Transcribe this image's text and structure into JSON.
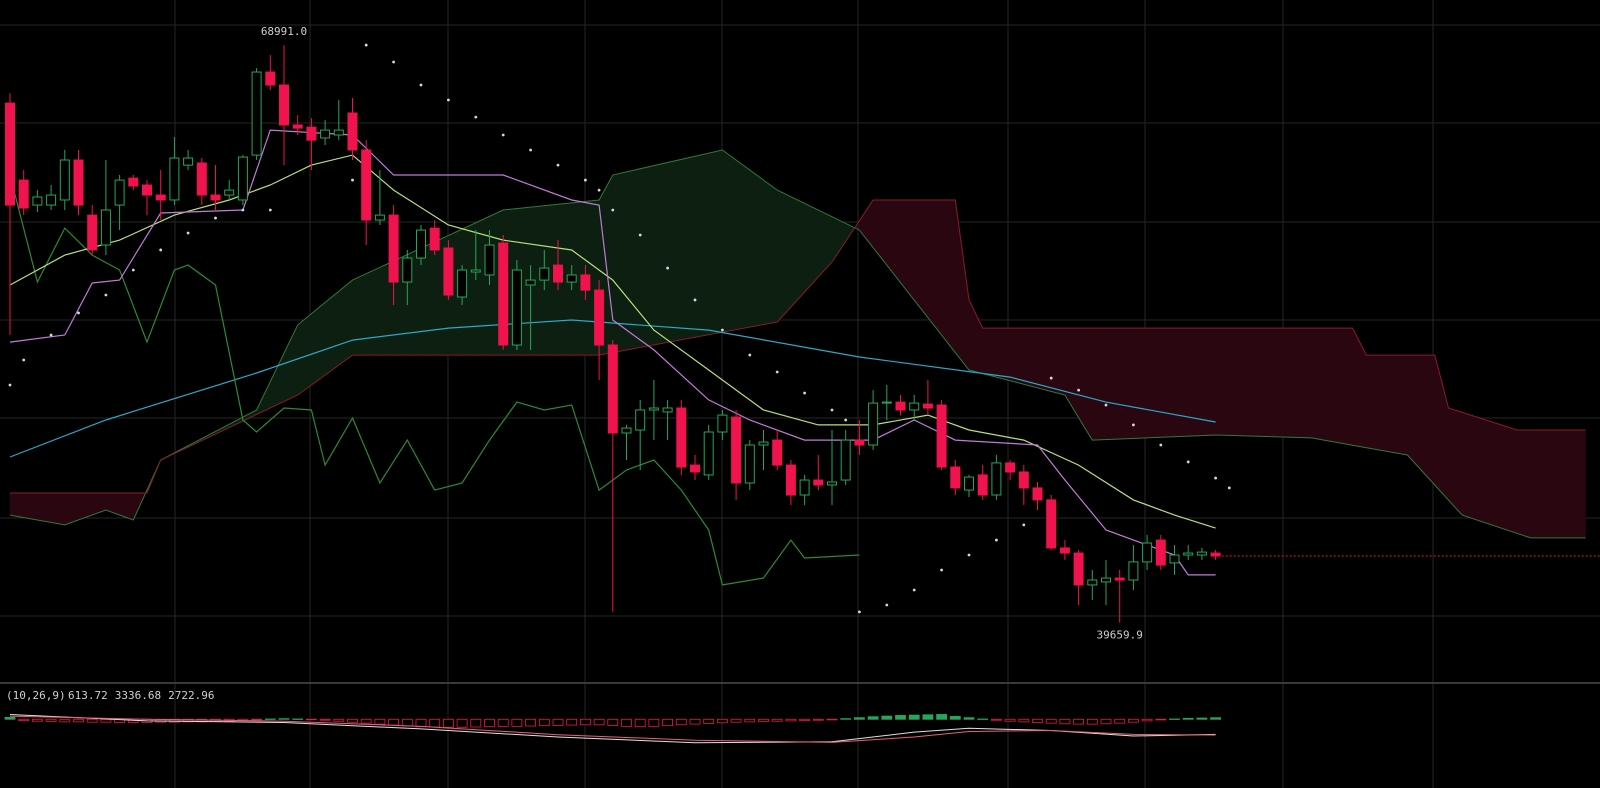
{
  "chart_data": {
    "type": "candlestick",
    "high_label": "68991.0",
    "low_label": "39659.9",
    "ylim": [
      36740,
      71290
    ],
    "categories": [
      null,
      null,
      null,
      null,
      null,
      null,
      null,
      null,
      null,
      null,
      null,
      null,
      null,
      null,
      null,
      null,
      null,
      null,
      null,
      null,
      null,
      null,
      null,
      null,
      null,
      null,
      null,
      null,
      null,
      null,
      null,
      null,
      null,
      null,
      null,
      null,
      null,
      null,
      null,
      null,
      null,
      null,
      null,
      null,
      null,
      null,
      null,
      null,
      null,
      null,
      null,
      null,
      null,
      null,
      null,
      null,
      null,
      null,
      null,
      null,
      null,
      null,
      null,
      null,
      null,
      null,
      null,
      null,
      null,
      null,
      null,
      null,
      null,
      null,
      null,
      null,
      null,
      null,
      null,
      null,
      null,
      null,
      null,
      null,
      null,
      null,
      null,
      null,
      null
    ],
    "up_color": "#26a65b",
    "down_color": "#f0134d",
    "open": [
      66050,
      62140,
      60870,
      60870,
      61130,
      63160,
      60360,
      58840,
      60870,
      62240,
      61890,
      61380,
      61130,
      62900,
      63010,
      61380,
      61380,
      61130,
      63410,
      67630,
      66970,
      64940,
      64830,
      64280,
      64430,
      65550,
      63670,
      60110,
      60360,
      56960,
      58180,
      59700,
      58690,
      56200,
      57470,
      57320,
      58940,
      53760,
      56810,
      57060,
      57820,
      56960,
      57320,
      56550,
      53760,
      49290,
      49440,
      50460,
      50360,
      50560,
      47660,
      47160,
      49340,
      50100,
      46750,
      48680,
      48930,
      47660,
      46140,
      46900,
      46650,
      46900,
      48930,
      48680,
      50810,
      50860,
      50460,
      50760,
      50710,
      47560,
      46390,
      47160,
      46140,
      47770,
      47310,
      46500,
      45890,
      43450,
      43190,
      41570,
      41720,
      41920,
      41820,
      42740,
      43850,
      42690,
      43090,
      43090,
      43190
    ],
    "high": [
      66560,
      62650,
      61630,
      61890,
      63670,
      63670,
      60870,
      63160,
      62400,
      62400,
      62140,
      62650,
      64330,
      63670,
      63260,
      62900,
      62140,
      63410,
      67830,
      68490,
      68991.0,
      65440,
      65290,
      65190,
      66210,
      66310,
      64170,
      62650,
      60870,
      58590,
      59860,
      60110,
      59090,
      57820,
      59600,
      59600,
      59350,
      58080,
      57820,
      58590,
      59090,
      57820,
      57820,
      57060,
      54010,
      49700,
      50970,
      51980,
      50970,
      50970,
      48170,
      49700,
      50460,
      50460,
      48930,
      49440,
      49440,
      47920,
      47160,
      48170,
      49440,
      49440,
      49950,
      51470,
      51730,
      51220,
      51220,
      51980,
      50970,
      47920,
      47160,
      47660,
      48170,
      47920,
      47660,
      46800,
      46140,
      43850,
      43350,
      42330,
      42840,
      42330,
      43600,
      44110,
      44110,
      43600,
      43600,
      43450,
      43350
    ],
    "low": [
      54270,
      60360,
      60520,
      60620,
      60620,
      60360,
      58330,
      58330,
      59600,
      61630,
      60360,
      60110,
      60870,
      62650,
      60870,
      60620,
      61130,
      60870,
      63160,
      66710,
      62900,
      64430,
      62650,
      63920,
      64170,
      63160,
      58840,
      59860,
      55790,
      55790,
      57820,
      58330,
      56050,
      55790,
      57060,
      56810,
      53510,
      53510,
      53510,
      56550,
      56550,
      56550,
      56050,
      51980,
      40200,
      47920,
      47410,
      48930,
      48930,
      47160,
      46900,
      46900,
      48930,
      45890,
      46390,
      47410,
      47410,
      45630,
      45630,
      46390,
      45630,
      46650,
      48170,
      48430,
      49950,
      50200,
      49950,
      50200,
      47410,
      46140,
      46040,
      45890,
      45890,
      46900,
      45630,
      45380,
      43350,
      42840,
      40550,
      40810,
      40550,
      39659.9,
      41310,
      42330,
      42330,
      42080,
      42840,
      42840,
      42840
    ],
    "close": [
      60870,
      60720,
      61280,
      61380,
      63160,
      60870,
      58590,
      60620,
      62140,
      61840,
      61380,
      61130,
      63260,
      63260,
      61380,
      61130,
      61630,
      63310,
      67630,
      66970,
      64940,
      64780,
      64170,
      64680,
      64680,
      63670,
      60110,
      60360,
      56960,
      58180,
      59600,
      58590,
      56300,
      57570,
      57570,
      58840,
      53760,
      57570,
      57060,
      57670,
      56960,
      57320,
      56550,
      53760,
      49290,
      49540,
      50460,
      50560,
      50560,
      47560,
      47310,
      49340,
      50200,
      46750,
      48680,
      48830,
      47660,
      46140,
      46900,
      46650,
      46800,
      48930,
      48680,
      50810,
      50860,
      50460,
      50810,
      50560,
      47560,
      46500,
      47050,
      46140,
      47770,
      47310,
      46500,
      45890,
      43450,
      43190,
      41570,
      41820,
      41920,
      41820,
      42740,
      43700,
      42580,
      43090,
      43190,
      43240,
      43040
    ],
    "last_price_color": "#e8163c",
    "cloud": {
      "up_color": "#0c1f10",
      "down_color": "#2a0710",
      "span_a": {
        "color": "#2f7a3a",
        "x": [
          0,
          4,
          7,
          9,
          11,
          18,
          21,
          25,
          36,
          43,
          44,
          52,
          56,
          62,
          70,
          77,
          79,
          88,
          95,
          102,
          106,
          111,
          115
        ],
        "values": [
          45120,
          44620,
          45380,
          44870,
          47920,
          50460,
          54780,
          57060,
          60620,
          61130,
          62400,
          63670,
          61630,
          59600,
          52490,
          51220,
          48930,
          49190,
          49040,
          48170,
          45120,
          43960,
          43960
        ]
      },
      "span_b": {
        "color": "#8b1a2a",
        "x": [
          0,
          10,
          11,
          21,
          25,
          43,
          56,
          60,
          63,
          69,
          70,
          71,
          98,
          99,
          104,
          105,
          110,
          115
        ],
        "values": [
          46240,
          46240,
          47920,
          51220,
          53250,
          53250,
          54930,
          57980,
          61130,
          61130,
          56050,
          54620,
          54620,
          53250,
          53250,
          50560,
          49440,
          49440
        ]
      }
    },
    "lines": [
      {
        "color": "#2aa9c9",
        "x": [
          0,
          7,
          18,
          25,
          32,
          41,
          51,
          62,
          73,
          80,
          88
        ],
        "values": [
          48070,
          49950,
          52340,
          54010,
          54620,
          55030,
          54520,
          53150,
          52130,
          50860,
          49850
        ]
      },
      {
        "color": "#2c8a34",
        "x": [
          0,
          2,
          4,
          6,
          8,
          10,
          12,
          13,
          15,
          17,
          18,
          20,
          22,
          23,
          25,
          27,
          29,
          31,
          33,
          35,
          37,
          39,
          41,
          43,
          45,
          47,
          49,
          51,
          52,
          55,
          57,
          58,
          62
        ],
        "values": [
          62400,
          56960,
          59700,
          58330,
          57570,
          53910,
          57570,
          57820,
          56810,
          49950,
          49340,
          50560,
          50460,
          47660,
          50050,
          46750,
          48930,
          46390,
          46750,
          48930,
          50860,
          50460,
          50710,
          46390,
          47410,
          47920,
          46390,
          44360,
          41570,
          41920,
          43850,
          42940,
          43090
        ]
      },
      {
        "color": "#b7e07a",
        "x": [
          0,
          4,
          8,
          12,
          16,
          19,
          22,
          25,
          28,
          32,
          36,
          41,
          44,
          47,
          51,
          55,
          59,
          63,
          67,
          70,
          74,
          78,
          82,
          85,
          88
        ],
        "values": [
          56810,
          58330,
          59090,
          60360,
          61130,
          61890,
          62900,
          63410,
          61630,
          59860,
          59090,
          58590,
          57060,
          54520,
          52490,
          50460,
          49700,
          49700,
          50200,
          49440,
          48930,
          47660,
          45890,
          45120,
          44460
        ]
      },
      {
        "color": "#c07ad8",
        "x": [
          0,
          4,
          6,
          8,
          11,
          17,
          19,
          25,
          28,
          36,
          41,
          43,
          44,
          47,
          51,
          54,
          58,
          63,
          66,
          69,
          75,
          77,
          80,
          85,
          86,
          88
        ],
        "values": [
          53910,
          54270,
          56910,
          57060,
          60470,
          60620,
          64680,
          64430,
          62400,
          62400,
          61130,
          60870,
          55030,
          53510,
          50970,
          49950,
          48930,
          48930,
          49950,
          48930,
          48680,
          46900,
          44360,
          43090,
          42080,
          42080
        ]
      }
    ],
    "sar": {
      "color": "#d8d8d8",
      "x": [
        0,
        1,
        3,
        5,
        7,
        9,
        11,
        13,
        15,
        17,
        19,
        25,
        26,
        28,
        30,
        32,
        34,
        36,
        38,
        40,
        42,
        43,
        44,
        46,
        48,
        50,
        52,
        54,
        56,
        58,
        60,
        61,
        62,
        64,
        66,
        68,
        70,
        72,
        74,
        76,
        78,
        80,
        82,
        84,
        86,
        88,
        89
      ],
      "values": [
        51730,
        53000,
        54270,
        55390,
        56300,
        57570,
        58590,
        59450,
        60210,
        60620,
        60620,
        62140,
        69000,
        68140,
        66970,
        66210,
        65340,
        64430,
        63670,
        62900,
        62140,
        61630,
        60620,
        59350,
        57670,
        56050,
        54520,
        53250,
        52390,
        51320,
        50460,
        49950,
        40200,
        40550,
        41310,
        42330,
        43090,
        43850,
        44620,
        52080,
        51470,
        50710,
        49700,
        48680,
        47820,
        47000,
        46500
      ]
    },
    "macd": {
      "label": "(10,26,9)",
      "readouts": [
        {
          "value": 613.72,
          "color": "#3fbf6f"
        },
        {
          "value": 3336.68,
          "color": "#e8607a"
        },
        {
          "value": 2722.96,
          "color": "#d8d8d8"
        }
      ],
      "ylim": [
        -8000,
        6000
      ],
      "histogram": {
        "up_color": "#26a65b",
        "down_color": "#f0134d",
        "values": [
          600,
          -400,
          -600,
          -700,
          -800,
          -800,
          -900,
          -900,
          -1000,
          -1000,
          -1000,
          -900,
          -900,
          -800,
          -800,
          -700,
          -600,
          -400,
          -200,
          100,
          200,
          100,
          -100,
          -300,
          -600,
          -900,
          -1200,
          -1500,
          -1800,
          -2100,
          -2300,
          -2400,
          -2500,
          -2500,
          -2400,
          -2300,
          -2200,
          -2200,
          -2100,
          -2000,
          -1900,
          -1800,
          -1700,
          -1700,
          -1900,
          -2200,
          -2300,
          -2200,
          -2000,
          -1700,
          -1500,
          -1300,
          -1100,
          -900,
          -800,
          -700,
          -600,
          -500,
          -400,
          -300,
          -200,
          200,
          500,
          800,
          1000,
          1200,
          1300,
          1400,
          1500,
          900,
          500,
          100,
          -300,
          -600,
          -800,
          -1000,
          -1200,
          -1400,
          -1500,
          -1500,
          -1400,
          -1200,
          -900,
          -500,
          -200,
          100,
          300,
          400,
          500
        ]
      },
      "lines": [
        {
          "color": "#e0e0e0",
          "x": [
            0,
            10,
            20,
            30,
            40,
            50,
            60,
            66,
            70,
            76,
            82,
            88
          ],
          "values": [
            1500,
            -500,
            -1000,
            -3000,
            -5500,
            -7300,
            -7000,
            -4000,
            -2800,
            -3500,
            -5200,
            -4700
          ]
        },
        {
          "color": "#e8607a",
          "x": [
            0,
            10,
            20,
            30,
            40,
            50,
            60,
            66,
            70,
            76,
            82,
            88
          ],
          "values": [
            1000,
            0,
            -600,
            -2200,
            -4800,
            -6500,
            -7200,
            -5500,
            -3800,
            -3500,
            -4700,
            -4900
          ]
        }
      ]
    }
  }
}
